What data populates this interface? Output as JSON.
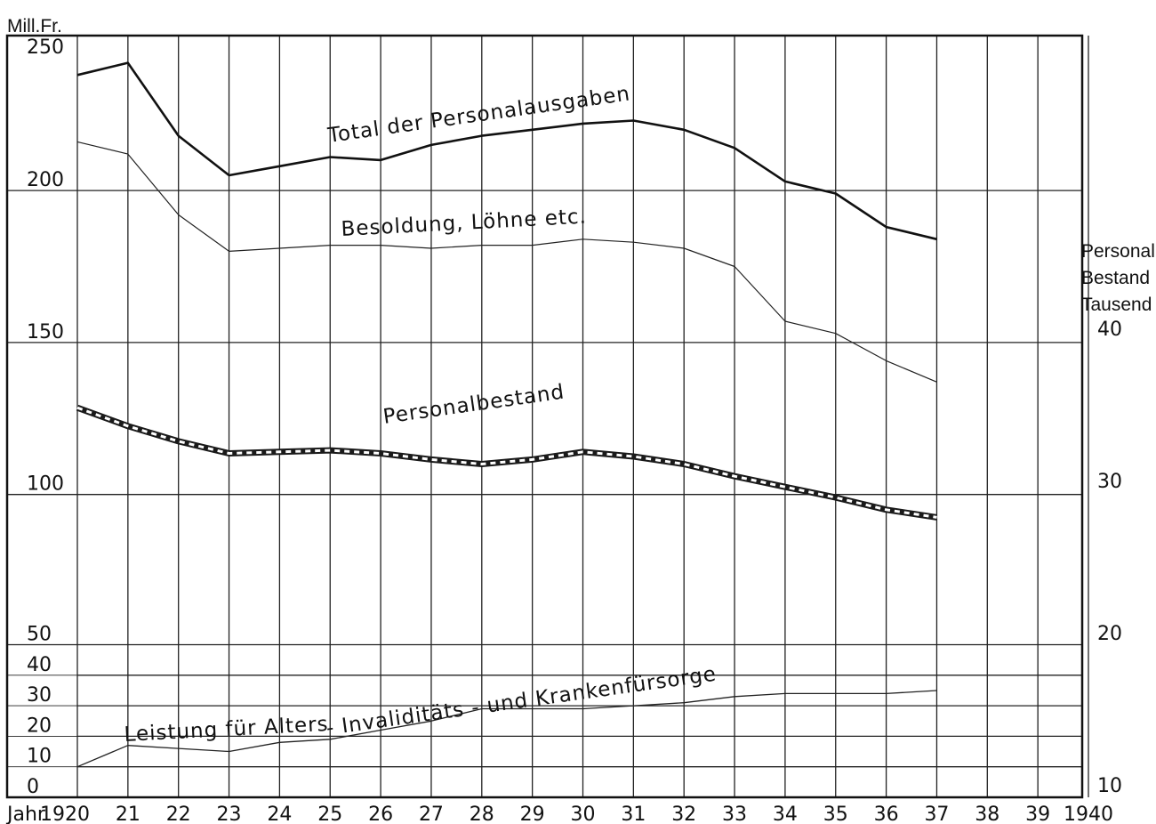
{
  "chart_data": {
    "type": "line",
    "left_axis_label": "Mill.Fr.",
    "right_axis_label": [
      "Personal",
      "Bestand",
      "Tausend"
    ],
    "x_axis_label": "Jahr",
    "x_tick_labels": [
      "1920",
      "21",
      "22",
      "23",
      "24",
      "25",
      "26",
      "27",
      "28",
      "29",
      "30",
      "31",
      "32",
      "33",
      "34",
      "35",
      "36",
      "37",
      "38",
      "39",
      "1940"
    ],
    "x_range": [
      1920,
      1940
    ],
    "left_ticks": [
      "0",
      "10",
      "20",
      "30",
      "40",
      "50",
      "100",
      "150",
      "200",
      "250"
    ],
    "right_ticks": [
      "10",
      "20",
      "30",
      "40"
    ],
    "series": [
      {
        "name": "Total der Personalausgaben",
        "axis": "left",
        "x": [
          1920,
          1921,
          1922,
          1923,
          1924,
          1925,
          1926,
          1927,
          1928,
          1929,
          1930,
          1931,
          1932,
          1933,
          1934,
          1935,
          1936,
          1937
        ],
        "y": [
          238,
          242,
          218,
          205,
          208,
          211,
          210,
          215,
          218,
          220,
          222,
          223,
          220,
          214,
          203,
          199,
          188,
          184
        ]
      },
      {
        "name": "Besoldung, Löhne etc.",
        "axis": "left",
        "x": [
          1920,
          1921,
          1922,
          1923,
          1924,
          1925,
          1926,
          1927,
          1928,
          1929,
          1930,
          1931,
          1932,
          1933,
          1934,
          1935,
          1936,
          1937
        ],
        "y": [
          216,
          212,
          192,
          180,
          181,
          182,
          182,
          181,
          182,
          182,
          184,
          183,
          181,
          175,
          157,
          153,
          144,
          137
        ]
      },
      {
        "name": "Personalbestand",
        "axis": "right",
        "x": [
          1920,
          1921,
          1922,
          1923,
          1924,
          1925,
          1926,
          1927,
          1928,
          1929,
          1930,
          1931,
          1932,
          1933,
          1934,
          1935,
          1936,
          1937
        ],
        "y": [
          35.6,
          34.4,
          33.4,
          32.6,
          32.7,
          32.8,
          32.6,
          32.2,
          31.9,
          32.2,
          32.7,
          32.4,
          31.9,
          31.1,
          30.4,
          29.7,
          28.9,
          28.4
        ]
      },
      {
        "name": "Leistung für Alters-, Invaliditäts- und Krankenfürsorge",
        "axis": "left",
        "x": [
          1920,
          1921,
          1922,
          1923,
          1924,
          1925,
          1926,
          1927,
          1928,
          1929,
          1930,
          1931,
          1932,
          1933,
          1934,
          1935,
          1936,
          1937
        ],
        "y": [
          10,
          17,
          16,
          15,
          18,
          19,
          22,
          25,
          29,
          29,
          29,
          30,
          31,
          33,
          34,
          34,
          34,
          35
        ]
      }
    ],
    "labels": [
      {
        "series": 0,
        "text": "Total der Personalausgaben"
      },
      {
        "series": 1,
        "text": "Besoldung, Löhne etc."
      },
      {
        "series": 2,
        "text": "Personalbestand"
      },
      {
        "series": 3,
        "text_parts": [
          "Leistung für Alters",
          "- Invaliditäts - und Krankenfürsorge"
        ]
      }
    ],
    "grid": true
  }
}
